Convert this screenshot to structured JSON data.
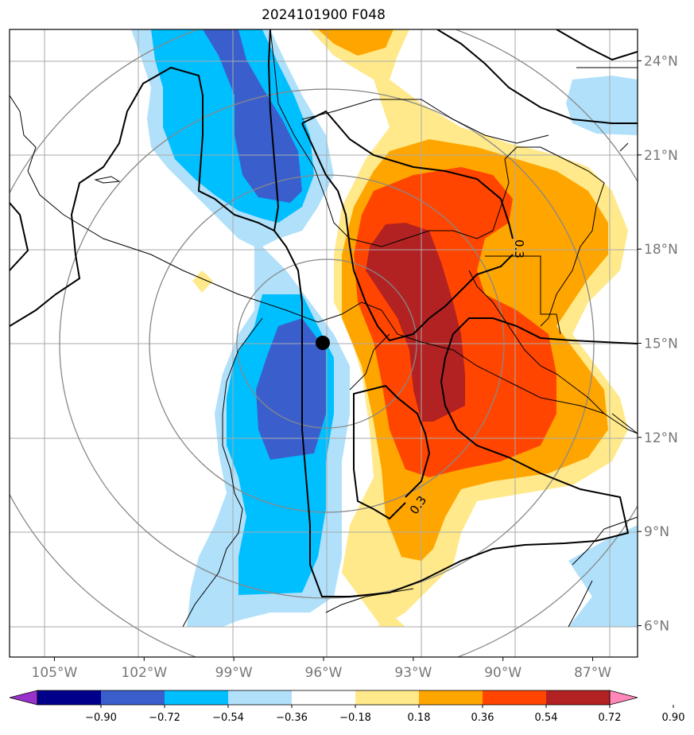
{
  "title": "2024101900 F048",
  "map": {
    "lon_range": [
      -106.5,
      -85.5
    ],
    "lat_range": [
      5,
      25
    ],
    "center_marker": {
      "lon": -96.0,
      "lat": 15.0
    },
    "lon_ticks": [
      {
        "value": -105,
        "label": "105°W"
      },
      {
        "value": -102,
        "label": "102°W"
      },
      {
        "value": -99,
        "label": "99°W"
      },
      {
        "value": -96,
        "label": "96°W"
      },
      {
        "value": -93,
        "label": "93°W"
      },
      {
        "value": -90,
        "label": "90°W"
      },
      {
        "value": -87,
        "label": "87°W"
      }
    ],
    "lat_ticks": [
      {
        "value": 24,
        "label": "24°N"
      },
      {
        "value": 21,
        "label": "21°N"
      },
      {
        "value": 18,
        "label": "18°N"
      },
      {
        "value": 15,
        "label": "15°N"
      },
      {
        "value": 12,
        "label": "12°N"
      },
      {
        "value": 9,
        "label": "9°N"
      },
      {
        "value": 6,
        "label": "6°N"
      }
    ],
    "contour_labels": [
      "0.3",
      "0.3"
    ]
  },
  "colorbar": {
    "levels": [
      "−0.90",
      "−0.72",
      "−0.54",
      "−0.36",
      "−0.18",
      "0.18",
      "0.36",
      "0.54",
      "0.72",
      "0.90"
    ],
    "colors": [
      "#9932cc",
      "#00008b",
      "#3a5fcd",
      "#00bfff",
      "#b0e0fa",
      "#ffffff",
      "#ffe98a",
      "#ffa500",
      "#ff4500",
      "#b22222",
      "#ff88b8"
    ]
  },
  "colors": {
    "blue_light": "#b0e0fa",
    "blue_mid": "#00bfff",
    "blue_dark": "#3a5fcd",
    "yellow": "#ffe98a",
    "orange": "#ffa500",
    "red_orange": "#ff4500",
    "dark_red": "#b22222"
  }
}
